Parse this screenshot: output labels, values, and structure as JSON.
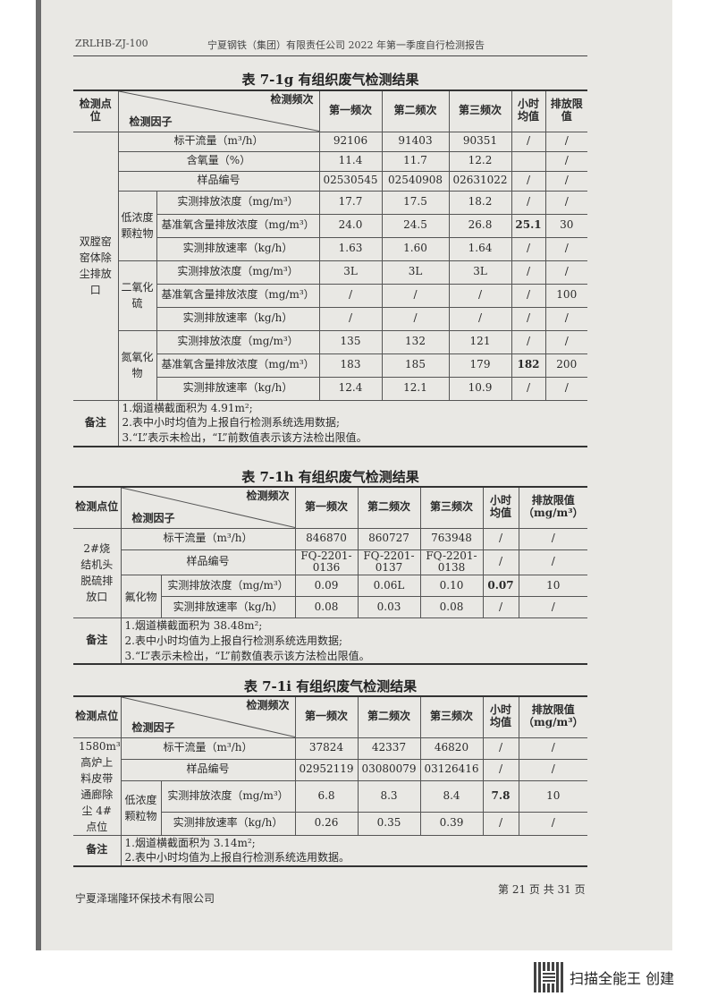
{
  "header": {
    "code": "ZRLHB-ZJ-100",
    "report_title": "宁夏钢铁（集团）有限责任公司 2022 年第一季度自行检测报告"
  },
  "tables": [
    {
      "title": "表 7-1g   有组织废气检测结果",
      "head": {
        "site": "检测点位",
        "freq": "检测频次",
        "factor": "检测因子",
        "cols": [
          "第一频次",
          "第二频次",
          "第三频次",
          "小时均值",
          "排放限值"
        ]
      },
      "site": "双膛窑窑体除尘排放口",
      "rows": [
        {
          "group": null,
          "item": "标干流量（m³/h）",
          "values": [
            "92106",
            "91403",
            "90351",
            "/",
            "/"
          ]
        },
        {
          "group": null,
          "item": "含氧量（%）",
          "values": [
            "11.4",
            "11.7",
            "12.2",
            "",
            "/"
          ]
        },
        {
          "group": null,
          "item": "样品编号",
          "values": [
            "02530545",
            "02540908",
            "02631022",
            "/",
            "/"
          ]
        },
        {
          "group": "低浓度颗粒物",
          "item": "实测排放浓度（mg/m³）",
          "values": [
            "17.7",
            "17.5",
            "18.2",
            "/",
            "/"
          ]
        },
        {
          "group": "低浓度颗粒物",
          "item": "基准氧含量排放浓度（mg/m³）",
          "values": [
            "24.0",
            "24.5",
            "26.8",
            "25.1",
            "30"
          ]
        },
        {
          "group": "低浓度颗粒物",
          "item": "实测排放速率（kg/h）",
          "values": [
            "1.63",
            "1.60",
            "1.64",
            "/",
            "/"
          ]
        },
        {
          "group": "二氧化硫",
          "item": "实测排放浓度（mg/m³）",
          "values": [
            "3L",
            "3L",
            "3L",
            "/",
            "/"
          ]
        },
        {
          "group": "二氧化硫",
          "item": "基准氧含量排放浓度（mg/m³）",
          "values": [
            "/",
            "/",
            "/",
            "/",
            "100"
          ]
        },
        {
          "group": "二氧化硫",
          "item": "实测排放速率（kg/h）",
          "values": [
            "/",
            "/",
            "/",
            "/",
            "/"
          ]
        },
        {
          "group": "氮氧化物",
          "item": "实测排放浓度（mg/m³）",
          "values": [
            "135",
            "132",
            "121",
            "/",
            "/"
          ]
        },
        {
          "group": "氮氧化物",
          "item": "基准氧含量排放浓度（mg/m³）",
          "values": [
            "183",
            "185",
            "179",
            "182",
            "200"
          ]
        },
        {
          "group": "氮氧化物",
          "item": "实测排放速率（kg/h）",
          "values": [
            "12.4",
            "12.1",
            "10.9",
            "/",
            "/"
          ]
        }
      ],
      "notes_label": "备注",
      "notes": [
        "1.烟道横截面积为 4.91m²;",
        "2.表中小时均值为上报自行检测系统选用数据;",
        "3.“L”表示未检出，“L”前数值表示该方法检出限值。"
      ]
    },
    {
      "title": "表 7-1h   有组织废气检测结果",
      "head": {
        "site": "检测点位",
        "freq": "检测频次",
        "factor": "检测因子",
        "cols": [
          "第一频次",
          "第二频次",
          "第三频次",
          "小时均值",
          "排放限值（mg/m³）"
        ]
      },
      "site": "2#烧结机头脱硫排放口",
      "rows": [
        {
          "group": null,
          "item": "标干流量（m³/h）",
          "values": [
            "846870",
            "860727",
            "763948",
            "/",
            "/"
          ]
        },
        {
          "group": null,
          "item": "样品编号",
          "values": [
            "FQ-2201-0136",
            "FQ-2201-0137",
            "FQ-2201-0138",
            "/",
            "/"
          ]
        },
        {
          "group": "氟化物",
          "item": "实测排放浓度（mg/m³）",
          "values": [
            "0.09",
            "0.06L",
            "0.10",
            "0.07",
            "10"
          ]
        },
        {
          "group": "氟化物",
          "item": "实测排放速率（kg/h）",
          "values": [
            "0.08",
            "0.03",
            "0.08",
            "/",
            "/"
          ]
        }
      ],
      "notes_label": "备注",
      "notes": [
        "1.烟道横截面积为 38.48m²;",
        "2.表中小时均值为上报自行检测系统选用数据;",
        "3.“L”表示未检出，“L”前数值表示该方法检出限值。"
      ]
    },
    {
      "title": "表 7-1i   有组织废气检测结果",
      "head": {
        "site": "检测点位",
        "freq": "检测频次",
        "factor": "检测因子",
        "cols": [
          "第一频次",
          "第二频次",
          "第三频次",
          "小时均值",
          "排放限值（mg/m³）"
        ]
      },
      "site": "1580m³高炉上料皮带通廊除尘 4#点位",
      "rows": [
        {
          "group": null,
          "item": "标干流量（m³/h）",
          "values": [
            "37824",
            "42337",
            "46820",
            "/",
            "/"
          ]
        },
        {
          "group": null,
          "item": "样品编号",
          "values": [
            "02952119",
            "03080079",
            "03126416",
            "/",
            "/"
          ]
        },
        {
          "group": "低浓度颗粒物",
          "item": "实测排放浓度（mg/m³）",
          "values": [
            "6.8",
            "8.3",
            "8.4",
            "7.8",
            "10"
          ]
        },
        {
          "group": "低浓度颗粒物",
          "item": "实测排放速率（kg/h）",
          "values": [
            "0.26",
            "0.35",
            "0.39",
            "/",
            "/"
          ]
        }
      ],
      "notes_label": "备注",
      "notes": [
        "1.烟道横截面积为 3.14m²;",
        "2.表中小时均值为上报自行检测系统选用数据。"
      ]
    }
  ],
  "footer": {
    "company": "宁夏泽瑞隆环保技术有限公司",
    "page": "第 21 页 共 31 页"
  },
  "watermark": {
    "text": "扫描全能王 创建"
  }
}
